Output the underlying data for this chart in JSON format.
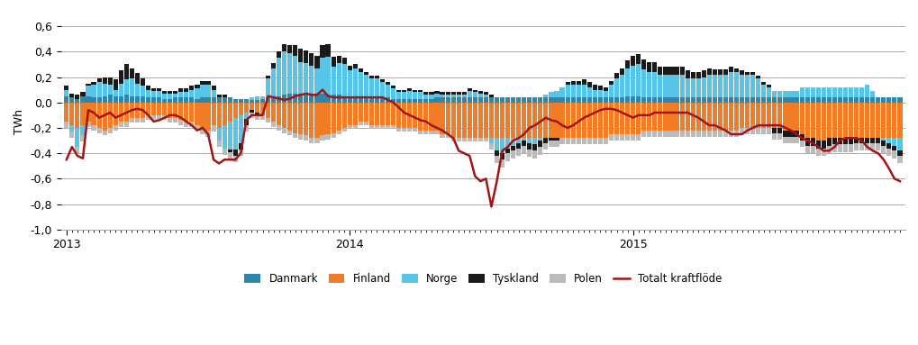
{
  "title": "",
  "ylabel": "TWh",
  "ylim": [
    -1.0,
    0.7
  ],
  "yticks": [
    -1.0,
    -0.8,
    -0.6,
    -0.4,
    -0.2,
    0.0,
    0.2,
    0.4,
    0.6
  ],
  "colors": {
    "Danmark": "#2E86AB",
    "Finland": "#F07D26",
    "Norge": "#56C5E8",
    "Tyskland": "#1A1A1A",
    "Polen": "#BBBBBB",
    "Totalt kraftflode": "#A31515"
  },
  "legend_labels": [
    "Danmark",
    "Finland",
    "Norge",
    "Tyskland",
    "Polen",
    "Totalt kraftflöde"
  ],
  "xtick_years": [
    "2013",
    "2014",
    "2015"
  ],
  "n_weeks": 156,
  "Danmark": [
    0.05,
    0.04,
    0.03,
    0.05,
    0.05,
    0.04,
    0.04,
    0.05,
    0.06,
    0.05,
    0.05,
    0.06,
    0.05,
    0.05,
    0.05,
    0.04,
    0.04,
    0.04,
    0.03,
    0.03,
    0.04,
    0.04,
    0.04,
    0.04,
    0.03,
    0.04,
    0.04,
    0.04,
    0.04,
    0.04,
    0.04,
    0.03,
    0.03,
    0.03,
    0.02,
    0.02,
    0.03,
    0.04,
    0.05,
    0.05,
    0.06,
    0.07,
    0.07,
    0.07,
    0.07,
    0.07,
    0.07,
    0.07,
    0.06,
    0.06,
    0.06,
    0.05,
    0.05,
    0.05,
    0.04,
    0.04,
    0.04,
    0.04,
    0.04,
    0.04,
    0.03,
    0.03,
    0.03,
    0.03,
    0.03,
    0.03,
    0.03,
    0.03,
    0.04,
    0.04,
    0.04,
    0.04,
    0.04,
    0.04,
    0.04,
    0.04,
    0.04,
    0.04,
    0.04,
    0.04,
    0.04,
    0.04,
    0.04,
    0.04,
    0.04,
    0.04,
    0.04,
    0.04,
    0.04,
    0.04,
    0.04,
    0.04,
    0.04,
    0.04,
    0.04,
    0.04,
    0.04,
    0.04,
    0.04,
    0.04,
    0.04,
    0.04,
    0.04,
    0.05,
    0.05,
    0.05,
    0.04,
    0.04,
    0.04,
    0.04,
    0.04,
    0.04,
    0.04,
    0.04,
    0.04,
    0.04,
    0.04,
    0.04,
    0.04,
    0.04,
    0.04,
    0.04,
    0.04,
    0.04,
    0.04,
    0.04,
    0.04,
    0.04,
    0.04,
    0.04,
    0.04,
    0.04,
    0.04,
    0.04,
    0.04,
    0.04,
    0.04,
    0.04,
    0.04,
    0.04,
    0.04,
    0.04,
    0.04,
    0.04,
    0.04,
    0.04,
    0.04,
    0.04,
    0.04,
    0.04,
    0.04,
    0.04,
    0.04,
    0.04
  ],
  "Finland": [
    -0.15,
    -0.18,
    -0.2,
    -0.18,
    -0.15,
    -0.18,
    -0.2,
    -0.22,
    -0.2,
    -0.18,
    -0.15,
    -0.15,
    -0.12,
    -0.12,
    -0.12,
    -0.1,
    -0.1,
    -0.1,
    -0.1,
    -0.12,
    -0.12,
    -0.14,
    -0.15,
    -0.15,
    -0.18,
    -0.2,
    -0.22,
    -0.18,
    -0.2,
    -0.18,
    -0.15,
    -0.12,
    -0.1,
    -0.08,
    -0.06,
    -0.08,
    -0.1,
    -0.12,
    -0.15,
    -0.18,
    -0.2,
    -0.22,
    -0.24,
    -0.25,
    -0.26,
    -0.28,
    -0.28,
    -0.26,
    -0.25,
    -0.24,
    -0.22,
    -0.2,
    -0.18,
    -0.18,
    -0.15,
    -0.15,
    -0.18,
    -0.18,
    -0.18,
    -0.18,
    -0.18,
    -0.2,
    -0.2,
    -0.2,
    -0.2,
    -0.22,
    -0.22,
    -0.22,
    -0.22,
    -0.25,
    -0.25,
    -0.28,
    -0.28,
    -0.28,
    -0.28,
    -0.28,
    -0.28,
    -0.28,
    -0.28,
    -0.28,
    -0.28,
    -0.28,
    -0.28,
    -0.28,
    -0.28,
    -0.28,
    -0.28,
    -0.28,
    -0.28,
    -0.28,
    -0.28,
    -0.28,
    -0.28,
    -0.28,
    -0.28,
    -0.28,
    -0.28,
    -0.28,
    -0.28,
    -0.28,
    -0.25,
    -0.25,
    -0.25,
    -0.25,
    -0.25,
    -0.25,
    -0.22,
    -0.22,
    -0.22,
    -0.22,
    -0.22,
    -0.22,
    -0.22,
    -0.22,
    -0.22,
    -0.22,
    -0.22,
    -0.22,
    -0.22,
    -0.22,
    -0.22,
    -0.22,
    -0.22,
    -0.22,
    -0.2,
    -0.2,
    -0.2,
    -0.2,
    -0.2,
    -0.2,
    -0.2,
    -0.2,
    -0.22,
    -0.22,
    -0.22,
    -0.25,
    -0.28,
    -0.28,
    -0.3,
    -0.3,
    -0.28,
    -0.28,
    -0.28,
    -0.28,
    -0.28,
    -0.28,
    -0.28,
    -0.28,
    -0.28,
    -0.28,
    -0.28,
    -0.28,
    -0.28,
    -0.28
  ],
  "Norge": [
    0.05,
    -0.05,
    -0.15,
    -0.08,
    0.08,
    0.1,
    0.12,
    0.1,
    0.08,
    0.05,
    0.1,
    0.12,
    0.14,
    0.1,
    0.08,
    0.06,
    0.05,
    0.05,
    0.04,
    0.04,
    0.03,
    0.04,
    0.04,
    0.06,
    0.08,
    0.1,
    0.1,
    0.06,
    -0.1,
    -0.18,
    -0.22,
    -0.25,
    -0.22,
    -0.05,
    0.02,
    0.03,
    0.02,
    0.15,
    0.22,
    0.3,
    0.34,
    0.32,
    0.3,
    0.25,
    0.24,
    0.22,
    0.2,
    0.28,
    0.3,
    0.22,
    0.25,
    0.25,
    0.2,
    0.22,
    0.2,
    0.18,
    0.15,
    0.15,
    0.12,
    0.1,
    0.08,
    0.05,
    0.05,
    0.06,
    0.05,
    0.05,
    0.03,
    0.03,
    0.03,
    0.02,
    0.02,
    0.02,
    0.02,
    0.02,
    0.05,
    0.04,
    0.03,
    0.02,
    -0.04,
    -0.1,
    -0.12,
    -0.08,
    -0.06,
    -0.04,
    -0.02,
    -0.04,
    -0.05,
    -0.02,
    0.02,
    0.04,
    0.05,
    0.08,
    0.1,
    0.1,
    0.1,
    0.1,
    0.08,
    0.06,
    0.06,
    0.05,
    0.1,
    0.15,
    0.18,
    0.22,
    0.24,
    0.25,
    0.22,
    0.2,
    0.2,
    0.18,
    0.18,
    0.18,
    0.18,
    0.18,
    0.15,
    0.15,
    0.15,
    0.16,
    0.18,
    0.18,
    0.18,
    0.18,
    0.2,
    0.2,
    0.18,
    0.18,
    0.18,
    0.15,
    0.1,
    0.08,
    0.05,
    0.05,
    0.05,
    0.05,
    0.05,
    0.08,
    0.08,
    0.08,
    0.08,
    0.08,
    0.08,
    0.08,
    0.08,
    0.08,
    0.08,
    0.08,
    0.08,
    0.1,
    0.05,
    0.0,
    -0.02,
    -0.04,
    -0.06,
    -0.1
  ],
  "Tyskland": [
    0.03,
    0.03,
    0.03,
    0.03,
    0.02,
    0.02,
    0.03,
    0.05,
    0.06,
    0.08,
    0.1,
    0.12,
    0.08,
    0.08,
    0.06,
    0.03,
    0.02,
    0.02,
    0.02,
    0.02,
    0.02,
    0.03,
    0.03,
    0.03,
    0.03,
    0.03,
    0.03,
    0.03,
    0.02,
    0.02,
    -0.02,
    -0.05,
    -0.05,
    -0.05,
    -0.02,
    -0.02,
    0.0,
    0.02,
    0.04,
    0.05,
    0.06,
    0.06,
    0.08,
    0.1,
    0.1,
    0.1,
    0.1,
    0.1,
    0.1,
    0.08,
    0.06,
    0.05,
    0.04,
    0.03,
    0.03,
    0.02,
    0.02,
    0.02,
    0.02,
    0.02,
    0.02,
    0.02,
    0.02,
    0.02,
    0.02,
    0.02,
    0.02,
    0.02,
    0.02,
    0.02,
    0.02,
    0.02,
    0.02,
    0.02,
    0.02,
    0.02,
    0.02,
    0.02,
    0.02,
    -0.04,
    -0.05,
    -0.04,
    -0.04,
    -0.04,
    -0.04,
    -0.05,
    -0.05,
    -0.05,
    -0.04,
    -0.02,
    -0.02,
    0.0,
    0.02,
    0.03,
    0.03,
    0.04,
    0.04,
    0.04,
    0.03,
    0.03,
    0.03,
    0.04,
    0.05,
    0.06,
    0.08,
    0.08,
    0.08,
    0.08,
    0.08,
    0.06,
    0.06,
    0.06,
    0.06,
    0.06,
    0.06,
    0.05,
    0.05,
    0.05,
    0.05,
    0.04,
    0.04,
    0.04,
    0.04,
    0.03,
    0.03,
    0.02,
    0.02,
    0.02,
    0.02,
    0.02,
    -0.04,
    -0.04,
    -0.05,
    -0.05,
    -0.05,
    -0.05,
    -0.06,
    -0.06,
    -0.06,
    -0.06,
    -0.06,
    -0.05,
    -0.05,
    -0.05,
    -0.05,
    -0.04,
    -0.04,
    -0.04,
    -0.04,
    -0.04,
    -0.04,
    -0.04,
    -0.04,
    -0.04
  ],
  "Polen": [
    -0.05,
    -0.05,
    -0.05,
    -0.05,
    -0.04,
    -0.04,
    -0.04,
    -0.04,
    -0.04,
    -0.04,
    -0.04,
    -0.04,
    -0.04,
    -0.04,
    -0.04,
    -0.04,
    -0.04,
    -0.04,
    -0.04,
    -0.04,
    -0.04,
    -0.04,
    -0.04,
    -0.04,
    -0.04,
    -0.05,
    -0.05,
    -0.05,
    -0.05,
    -0.05,
    -0.05,
    -0.05,
    -0.05,
    -0.05,
    -0.04,
    -0.04,
    -0.04,
    -0.04,
    -0.04,
    -0.04,
    -0.04,
    -0.04,
    -0.04,
    -0.04,
    -0.04,
    -0.04,
    -0.04,
    -0.04,
    -0.04,
    -0.04,
    -0.03,
    -0.03,
    -0.03,
    -0.03,
    -0.03,
    -0.03,
    -0.03,
    -0.03,
    -0.03,
    -0.03,
    -0.03,
    -0.03,
    -0.03,
    -0.03,
    -0.03,
    -0.03,
    -0.03,
    -0.03,
    -0.03,
    -0.03,
    -0.03,
    -0.03,
    -0.03,
    -0.03,
    -0.03,
    -0.03,
    -0.03,
    -0.03,
    -0.05,
    -0.06,
    -0.06,
    -0.06,
    -0.06,
    -0.06,
    -0.06,
    -0.06,
    -0.06,
    -0.06,
    -0.05,
    -0.05,
    -0.05,
    -0.05,
    -0.05,
    -0.05,
    -0.05,
    -0.05,
    -0.05,
    -0.05,
    -0.05,
    -0.05,
    -0.05,
    -0.05,
    -0.05,
    -0.05,
    -0.05,
    -0.05,
    -0.05,
    -0.05,
    -0.05,
    -0.05,
    -0.05,
    -0.05,
    -0.05,
    -0.05,
    -0.05,
    -0.05,
    -0.05,
    -0.05,
    -0.05,
    -0.05,
    -0.05,
    -0.05,
    -0.05,
    -0.05,
    -0.05,
    -0.05,
    -0.05,
    -0.05,
    -0.05,
    -0.05,
    -0.05,
    -0.05,
    -0.05,
    -0.05,
    -0.05,
    -0.05,
    -0.06,
    -0.06,
    -0.06,
    -0.06,
    -0.06,
    -0.06,
    -0.06,
    -0.06,
    -0.06,
    -0.06,
    -0.06,
    -0.06,
    -0.06,
    -0.06,
    -0.06,
    -0.06,
    -0.06,
    -0.06
  ],
  "total": [
    -0.45,
    -0.35,
    -0.42,
    -0.44,
    -0.06,
    -0.08,
    -0.12,
    -0.1,
    -0.08,
    -0.12,
    -0.1,
    -0.08,
    -0.06,
    -0.05,
    -0.06,
    -0.1,
    -0.15,
    -0.14,
    -0.12,
    -0.1,
    -0.1,
    -0.12,
    -0.15,
    -0.18,
    -0.22,
    -0.2,
    -0.25,
    -0.45,
    -0.48,
    -0.45,
    -0.45,
    -0.45,
    -0.4,
    -0.14,
    -0.1,
    -0.1,
    -0.1,
    0.05,
    0.04,
    0.03,
    0.02,
    0.03,
    0.05,
    0.06,
    0.07,
    0.06,
    0.06,
    0.1,
    0.05,
    0.04,
    0.04,
    0.04,
    0.04,
    0.04,
    0.04,
    0.04,
    0.04,
    0.04,
    0.04,
    0.02,
    0.0,
    -0.04,
    -0.08,
    -0.1,
    -0.12,
    -0.14,
    -0.15,
    -0.18,
    -0.2,
    -0.22,
    -0.25,
    -0.28,
    -0.38,
    -0.4,
    -0.42,
    -0.58,
    -0.62,
    -0.6,
    -0.82,
    -0.62,
    -0.38,
    -0.35,
    -0.3,
    -0.28,
    -0.25,
    -0.2,
    -0.18,
    -0.15,
    -0.12,
    -0.14,
    -0.15,
    -0.18,
    -0.2,
    -0.18,
    -0.15,
    -0.12,
    -0.1,
    -0.08,
    -0.06,
    -0.05,
    -0.05,
    -0.06,
    -0.08,
    -0.1,
    -0.12,
    -0.1,
    -0.1,
    -0.1,
    -0.08,
    -0.08,
    -0.08,
    -0.08,
    -0.08,
    -0.08,
    -0.08,
    -0.1,
    -0.12,
    -0.15,
    -0.18,
    -0.18,
    -0.2,
    -0.22,
    -0.25,
    -0.25,
    -0.25,
    -0.22,
    -0.2,
    -0.18,
    -0.18,
    -0.18,
    -0.18,
    -0.18,
    -0.2,
    -0.22,
    -0.25,
    -0.28,
    -0.3,
    -0.32,
    -0.35,
    -0.38,
    -0.38,
    -0.35,
    -0.3,
    -0.28,
    -0.28,
    -0.28,
    -0.3,
    -0.35,
    -0.38,
    -0.4,
    -0.45,
    -0.52,
    -0.6,
    -0.62
  ]
}
